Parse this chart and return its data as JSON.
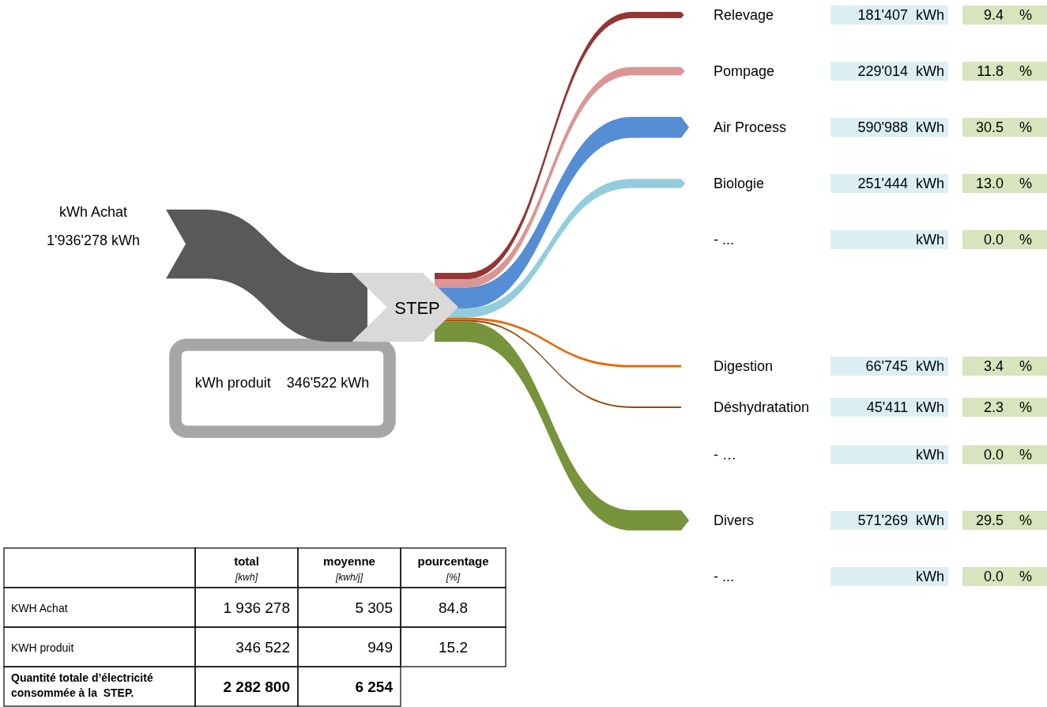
{
  "chart_data": [
    {
      "type": "other",
      "data_labels": true,
      "annotations": [
        "kWh Achat",
        "1'936'278 kWh",
        "kWh produit    346'522 kWh",
        "STEP",
        "%"
      ],
      "categories": [
        "Relevage",
        "Pompage",
        "Air Process",
        "Biologie",
        "- ...",
        "Digestion",
        "Déshydratation",
        "- …",
        "Divers",
        "- ..."
      ],
      "colors": [
        "#943634",
        "#da9694",
        "#558ed5",
        "#92cddc",
        null,
        "#e46c0a",
        "#984807",
        null,
        "#77933c",
        null
      ],
      "series": [
        {
          "values": [
            181407,
            229014,
            590988,
            251444,
            null,
            66745,
            45411,
            null,
            571269,
            null
          ],
          "value_labels": [
            "181'407  kWh",
            "229'014  kWh",
            "590'988  kWh",
            "251'444  kWh",
            "kWh",
            "66'745  kWh",
            "45'411  kWh",
            "kWh",
            "571'269  kWh",
            "kWh"
          ]
        },
        {
          "values": [
            9.4,
            11.8,
            30.5,
            13.0,
            0.0,
            3.4,
            2.3,
            0.0,
            29.5,
            0.0
          ],
          "value_labels": [
            "9.4",
            "11.8",
            "30.5",
            "13.0",
            "0.0",
            "3.4",
            "2.3",
            "0.0",
            "29.5",
            "0.0"
          ]
        }
      ]
    },
    {
      "type": "other",
      "annotations": [
        "[kwh]",
        "[kwh/j]",
        "[%]"
      ],
      "categories": [
        "KWH Achat",
        "KWH produit",
        "Quantité totale d’électricité consommée à la  STEP."
      ],
      "series": [
        {
          "name": "total",
          "values": [
            1936278,
            346522,
            2282800
          ],
          "value_labels": [
            "1 936 278",
            "346 522",
            "2 282 800"
          ]
        },
        {
          "name": "moyenne",
          "values": [
            5305,
            949,
            6254
          ],
          "value_labels": [
            "5 305",
            "949",
            "6 254"
          ]
        },
        {
          "name": "pourcentage",
          "values": [
            84.8,
            15.2,
            null
          ],
          "value_labels": [
            "84.8",
            "15.2",
            null
          ]
        }
      ]
    }
  ]
}
